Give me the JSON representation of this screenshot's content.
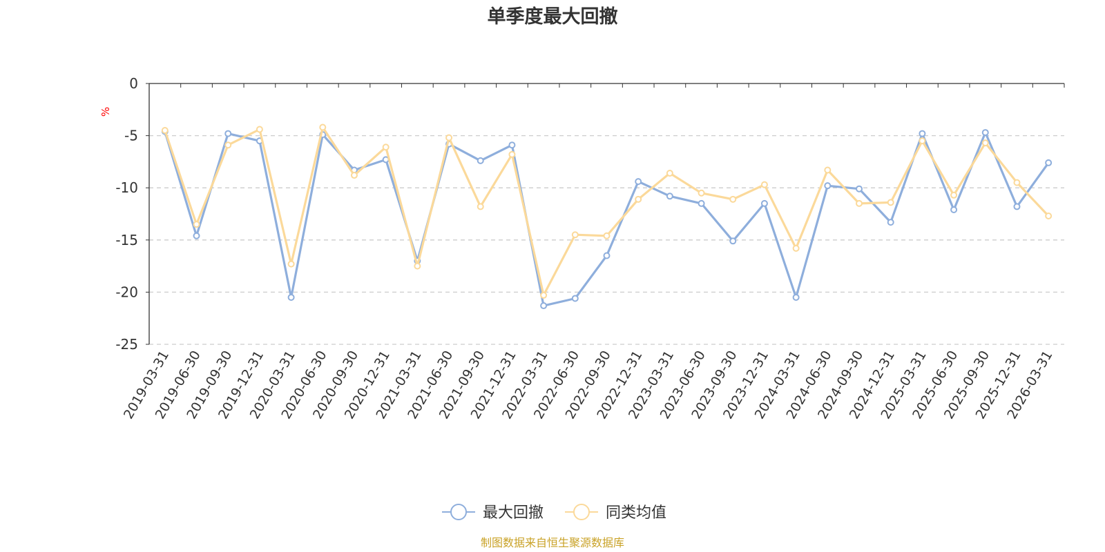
{
  "chart_data": {
    "type": "line",
    "title": "单季度最大回撤",
    "ylabel": "%",
    "xlabel": "",
    "ylim": [
      -25,
      0
    ],
    "y_ticks": [
      0,
      -5,
      -10,
      -15,
      -20,
      -25
    ],
    "grid": true,
    "legend_position": "bottom-center",
    "categories": [
      "2019-03-31",
      "2019-06-30",
      "2019-09-30",
      "2019-12-31",
      "2020-03-31",
      "2020-06-30",
      "2020-09-30",
      "2020-12-31",
      "2021-03-31",
      "2021-06-30",
      "2021-09-30",
      "2021-12-31",
      "2022-03-31",
      "2022-06-30",
      "2022-09-30",
      "2022-12-31",
      "2023-03-31",
      "2023-06-30",
      "2023-09-30",
      "2023-12-31",
      "2024-03-31",
      "2024-06-30",
      "2024-09-30",
      "2024-12-31",
      "2025-03-31",
      "2025-06-30",
      "2025-09-30",
      "2025-12-31",
      "2026-03-31"
    ],
    "series": [
      {
        "name": "最大回撤",
        "color": "#8eaedc",
        "values": [
          -4.6,
          -14.6,
          -4.8,
          -5.5,
          -20.5,
          -4.9,
          -8.3,
          -7.3,
          -17.0,
          -5.8,
          -7.4,
          -5.9,
          -21.3,
          -20.6,
          -16.5,
          -9.4,
          -10.8,
          -11.5,
          -15.1,
          -11.5,
          -20.5,
          -9.8,
          -10.1,
          -13.3,
          -4.8,
          -12.1,
          -4.7,
          -11.8,
          -7.6
        ]
      },
      {
        "name": "同类均值",
        "color": "#fbd99a",
        "values": [
          -4.5,
          -13.5,
          -5.9,
          -4.4,
          -17.3,
          -4.2,
          -8.8,
          -6.1,
          -17.5,
          -5.2,
          -11.8,
          -6.8,
          -20.3,
          -14.5,
          -14.6,
          -11.1,
          -8.6,
          -10.5,
          -11.1,
          -9.7,
          -15.8,
          -8.3,
          -11.5,
          -11.4,
          -5.5,
          -10.7,
          -5.7,
          -9.5,
          -12.7
        ]
      }
    ]
  },
  "footer": {
    "source": "制图数据来自恒生聚源数据库",
    "source_color": "#c9a227"
  }
}
